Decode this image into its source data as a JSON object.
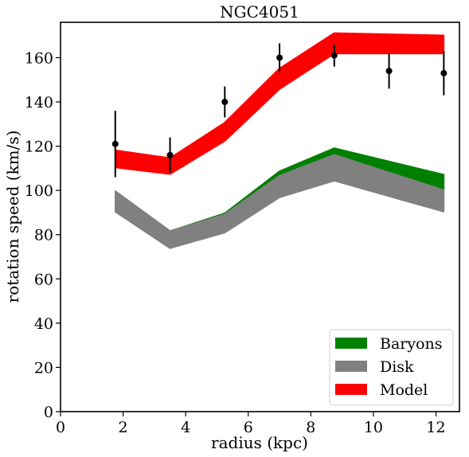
{
  "chart_data": {
    "type": "area",
    "title": "NGC4051",
    "xlabel": "radius (kpc)",
    "ylabel": "rotation speed (km/s)",
    "xlim": [
      0,
      12.75
    ],
    "ylim": [
      0,
      176
    ],
    "xticks": [
      0,
      2,
      4,
      6,
      8,
      10,
      12
    ],
    "yticks": [
      0,
      20,
      40,
      60,
      80,
      100,
      120,
      140,
      160
    ],
    "grid": false,
    "legend_position": "lower-right",
    "x": [
      1.75,
      3.5,
      5.25,
      7.0,
      8.75,
      10.5,
      12.25
    ],
    "series": [
      {
        "name": "Baryons",
        "kind": "band",
        "color": "#008000",
        "x": [
          1.75,
          3.5,
          5.25,
          7.0,
          8.75,
          12.25
        ],
        "upper": [
          99.5,
          81.5,
          89.5,
          108.5,
          119,
          107
        ],
        "lower": [
          91,
          75,
          82,
          99.5,
          109.5,
          98.5
        ]
      },
      {
        "name": "Disk",
        "kind": "band",
        "color": "#808080",
        "x": [
          1.75,
          3.5,
          5.25,
          7.0,
          8.75,
          12.25
        ],
        "upper": [
          99.5,
          81.5,
          89,
          106.5,
          116,
          100
        ],
        "lower": [
          90.5,
          74,
          81,
          97,
          104.5,
          90.5
        ]
      },
      {
        "name": "Model",
        "kind": "band",
        "color": "#ff0000",
        "x": [
          1.75,
          3.5,
          5.25,
          7.0,
          8.75,
          12.25
        ],
        "upper": [
          118,
          114.5,
          130.5,
          155,
          171,
          170
        ],
        "lower": [
          110.5,
          107.5,
          122.5,
          146,
          162,
          162
        ]
      },
      {
        "kind": "errorbar",
        "color": "#000000",
        "x": [
          1.75,
          3.5,
          5.25,
          7.0,
          8.75,
          10.5,
          12.25
        ],
        "y": [
          121,
          116,
          140,
          160,
          161,
          154,
          153
        ],
        "yerr": [
          15,
          8,
          7,
          6.5,
          5,
          8,
          10
        ]
      }
    ]
  }
}
